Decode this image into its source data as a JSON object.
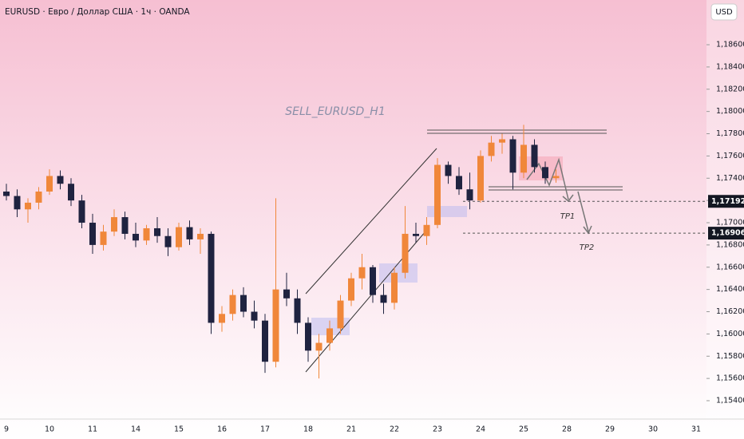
{
  "chart_data": {
    "type": "candlestick",
    "header": "EURUSD · Евро / Доллар США · 1ч · OANDA",
    "currency": "USD",
    "title": "SELL_EURUSD_H1",
    "annotations": [
      "TP1",
      "TP2"
    ],
    "up_color": "#f0873a",
    "down_color": "#1f2340",
    "categories": [
      "9",
      null,
      null,
      null,
      "10",
      null,
      null,
      null,
      "11",
      null,
      null,
      null,
      "14",
      null,
      null,
      null,
      "15",
      null,
      null,
      null,
      "16",
      null,
      null,
      null,
      "17",
      null,
      null,
      null,
      "18",
      null,
      null,
      null,
      "21",
      null,
      null,
      null,
      "22",
      null,
      null,
      null,
      "23",
      null,
      null,
      null,
      "24",
      null,
      null,
      null,
      "25",
      null,
      null,
      null,
      "28",
      null,
      null,
      null,
      "29",
      null,
      null,
      null,
      "30",
      null,
      null,
      null,
      "31"
    ],
    "open": [
      1.1728,
      1.1724,
      1.1712,
      1.1718,
      1.1728,
      1.1742,
      1.1735,
      1.172,
      1.17,
      1.168,
      1.1692,
      1.1705,
      1.169,
      1.1684,
      1.1695,
      1.1688,
      1.1678,
      1.1696,
      1.1685,
      1.169,
      1.161,
      1.1618,
      1.1635,
      1.162,
      1.1612,
      1.1575,
      1.164,
      1.1632,
      1.161,
      1.1585,
      1.1592,
      1.1605,
      1.163,
      1.165,
      1.166,
      1.1635,
      1.1628,
      1.1655,
      1.169,
      1.1688,
      1.1698,
      1.1752,
      1.1742,
      1.173,
      1.172,
      1.176,
      1.1772,
      1.1775,
      1.1745,
      1.177,
      1.175,
      1.174,
      null,
      null,
      null,
      null,
      null,
      null,
      null,
      null,
      null,
      null,
      null,
      null,
      null
    ],
    "high": [
      1.1735,
      1.173,
      1.1722,
      1.1732,
      1.1748,
      1.1747,
      1.174,
      1.1725,
      1.1708,
      1.1698,
      1.1712,
      1.171,
      1.17,
      1.1698,
      1.1705,
      1.1695,
      1.17,
      1.1702,
      1.1695,
      1.1692,
      1.1625,
      1.164,
      1.1642,
      1.163,
      1.1618,
      1.1722,
      1.1655,
      1.164,
      1.1615,
      1.16,
      1.1612,
      1.1635,
      1.1655,
      1.1672,
      1.1662,
      1.1645,
      1.166,
      1.1715,
      1.17,
      1.1705,
      1.1758,
      1.1755,
      1.175,
      1.1745,
      1.1765,
      1.1778,
      1.178,
      1.1778,
      1.1788,
      1.1775,
      1.1755,
      1.1748,
      null,
      null,
      null,
      null,
      null,
      null,
      null,
      null,
      null,
      null,
      null,
      null,
      null
    ],
    "low": [
      1.172,
      1.1705,
      1.17,
      1.1712,
      1.1725,
      1.173,
      1.1715,
      1.1695,
      1.1672,
      1.1675,
      1.1688,
      1.1685,
      1.1678,
      1.168,
      1.1682,
      1.167,
      1.1675,
      1.168,
      1.1672,
      1.16,
      1.1602,
      1.1612,
      1.1615,
      1.1605,
      1.1565,
      1.157,
      1.1625,
      1.16,
      1.1575,
      1.156,
      1.1585,
      1.16,
      1.1625,
      1.164,
      1.1628,
      1.1618,
      1.1622,
      1.165,
      1.1682,
      1.168,
      1.1695,
      1.1735,
      1.1725,
      1.1712,
      1.1718,
      1.1755,
      1.1762,
      1.173,
      1.174,
      1.1745,
      1.1735,
      1.1736,
      null,
      null,
      null,
      null,
      null,
      null,
      null,
      null,
      null,
      null,
      null,
      null,
      null
    ],
    "close": [
      1.1724,
      1.1712,
      1.1718,
      1.1728,
      1.1742,
      1.1735,
      1.172,
      1.17,
      1.168,
      1.1692,
      1.1705,
      1.169,
      1.1684,
      1.1695,
      1.1688,
      1.1678,
      1.1696,
      1.1685,
      1.169,
      1.161,
      1.1618,
      1.1635,
      1.162,
      1.1612,
      1.1575,
      1.164,
      1.1632,
      1.161,
      1.1585,
      1.1592,
      1.1605,
      1.163,
      1.165,
      1.166,
      1.1635,
      1.1628,
      1.1655,
      1.169,
      1.1688,
      1.1698,
      1.1752,
      1.1742,
      1.173,
      1.172,
      1.176,
      1.1772,
      1.1775,
      1.1745,
      1.177,
      1.175,
      1.174,
      1.1742,
      null,
      null,
      null,
      null,
      null,
      null,
      null,
      null,
      null,
      null,
      null,
      null,
      null
    ],
    "ylim": [
      1.15235,
      1.19002
    ],
    "yticks": [
      {
        "value": 1.154,
        "label": "1,15400"
      },
      {
        "value": 1.156,
        "label": "1,15600"
      },
      {
        "value": 1.158,
        "label": "1,15800"
      },
      {
        "value": 1.16,
        "label": "1,16000"
      },
      {
        "value": 1.162,
        "label": "1,16200"
      },
      {
        "value": 1.164,
        "label": "1,16400"
      },
      {
        "value": 1.166,
        "label": "1,16600"
      },
      {
        "value": 1.168,
        "label": "1,16800"
      },
      {
        "value": 1.17,
        "label": "1,17000"
      },
      {
        "value": 1.172,
        "label": "1,17200"
      },
      {
        "value": 1.174,
        "label": "1,17400"
      },
      {
        "value": 1.176,
        "label": "1,17600"
      },
      {
        "value": 1.178,
        "label": "1,17800"
      },
      {
        "value": 1.18,
        "label": "1,18000"
      },
      {
        "value": 1.182,
        "label": "1,18200"
      },
      {
        "value": 1.184,
        "label": "1,18400"
      },
      {
        "value": 1.186,
        "label": "1,18600"
      }
    ],
    "price_lines": [
      {
        "value": 1.17192,
        "label": "1,17192"
      },
      {
        "value": 1.16906,
        "label": "1,16906"
      }
    ]
  }
}
